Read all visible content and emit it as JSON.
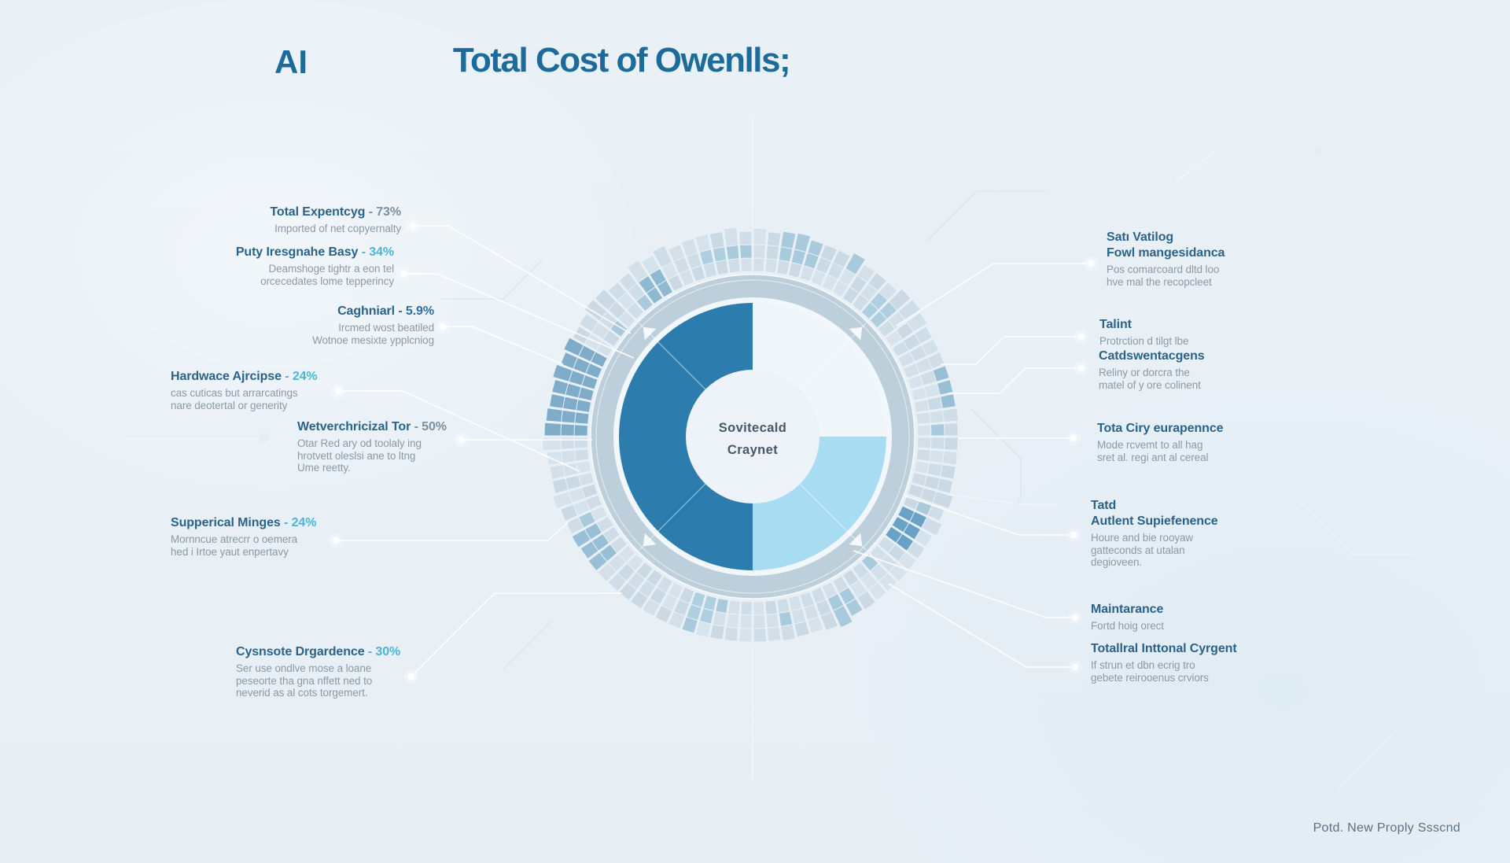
{
  "title": {
    "prefix": "AI",
    "main": "Total Cost of Owenlls;"
  },
  "center_label": {
    "line1": "Sovitecald",
    "line2": "Craynet"
  },
  "footer": "Potd. New Proply Ssscnd",
  "chart_data": {
    "type": "pie",
    "title": "Total Cost of Owenlls;",
    "center_label": "Sovitecald Craynet",
    "segments": [
      {
        "name": "top-right",
        "value": 25,
        "color": "#f1f6fa"
      },
      {
        "name": "bottom-right",
        "value": 25,
        "color": "#a7dcf3"
      },
      {
        "name": "left",
        "value": 50,
        "color": "#2c7dad"
      }
    ],
    "ring": {
      "band_color": "#bccfdb",
      "tick_base_colors": [
        "#cfdde8",
        "#cbd9e5",
        "#d3e0ea",
        "#d7e3ec"
      ],
      "tick_accent_colors": [
        "#a9cadc",
        "#98bfd6",
        "#8fb8d1",
        "#7fadc9",
        "#aecfdf",
        "#69a2c6"
      ]
    }
  },
  "left_callouts": [
    {
      "heading": "Total Expentcyg",
      "pct": "- 73%",
      "desc": "Imported of net copyernalty"
    },
    {
      "heading": "Puty Iresgnahe Basy",
      "pct": "- 34%",
      "desc": "Deamshoge tightr a eon tel\norcecedates lome tepperincy"
    },
    {
      "heading": "Caghniarl",
      "pct": "- 5.9%",
      "desc": "Ircmed wost beatiled\nWotnoe mesixte ypplcniog"
    },
    {
      "heading": "Hardwace Ajrcipse",
      "pct": "- 24%",
      "desc": "cas cuticas but arrarcatings\nnare deotertal or generity"
    },
    {
      "heading": "Wetverchricizal Tor",
      "pct": "- 50%",
      "desc": "Otar Red ary od toolaly ing\nhrotvett oleslsi ane to ltng\nUme reetty."
    },
    {
      "heading": "Supperical Minges",
      "pct": "- 24%",
      "desc": "Mornncue atrecrr o oemera\nhed i Irtoe yaut enpertavy"
    },
    {
      "heading": "Cysnsote Drgardence",
      "pct": "- 30%",
      "desc": "Ser use ondlve mose a loane\npeseorte tha gna nffett ned to\nneverid as al cots torgemert."
    }
  ],
  "right_callouts": [
    {
      "heading": "Satı Vatilog\nFowl mangesidanca",
      "desc": "Pos comarcoard dltd loo\nhve mal the recopcleet"
    },
    {
      "heading": "Talint",
      "desc": "Protrction d tilgt lbe"
    },
    {
      "heading": "Catdswentacgens",
      "desc": "Reliny or dorcra the\nmatel of y ore colinent"
    },
    {
      "heading": "Tota Ciry eurapennce",
      "desc": "Mode rcvemt to all hag\nsret al. regi ant al cereal"
    },
    {
      "heading": "Tatd\nAutlent Supiefenence",
      "desc": "Houre and bie rooyaw\ngatteconds at utalan\ndegioveen."
    },
    {
      "heading": "Maintarance",
      "desc": "Fortd hoig orect"
    },
    {
      "heading": "Totallral Inttonal Cyrgent",
      "desc": "If strun et dbn ecrig tro\ngebete reirooenus crviors"
    }
  ]
}
